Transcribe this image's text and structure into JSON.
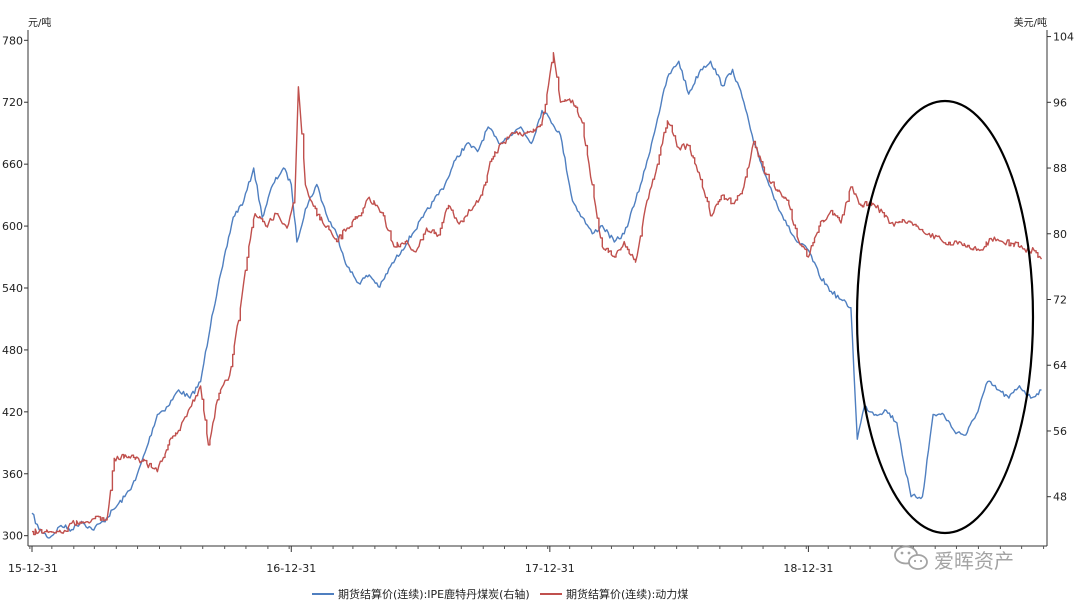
{
  "chart_data": {
    "type": "line",
    "left_axis": {
      "unit": "元/吨",
      "ticks": [
        "780",
        "720",
        "660",
        "600",
        "540",
        "480",
        "420",
        "360",
        "300"
      ],
      "range": [
        290,
        790
      ]
    },
    "right_axis": {
      "unit": "美元/吨",
      "ticks": [
        "104",
        "96",
        "88",
        "80",
        "72",
        "64",
        "56",
        "48"
      ],
      "range": [
        42,
        104.8
      ]
    },
    "x_ticks": [
      "15-12-31",
      "16-12-31",
      "17-12-31",
      "18-12-31"
    ],
    "x_range": [
      "2015-12-31",
      "2019-11-30"
    ],
    "series": [
      {
        "name": "期货结算价(连续):IPE鹿特丹煤炭(右轴)",
        "axis": "right",
        "color": "#4F7FC0",
        "points": [
          [
            "2015-12-31",
            46.0
          ],
          [
            "2016-01-10",
            44.0
          ],
          [
            "2016-01-25",
            43.0
          ],
          [
            "2016-02-10",
            44.5
          ],
          [
            "2016-02-25",
            44.0
          ],
          [
            "2016-03-10",
            45.0
          ],
          [
            "2016-03-25",
            44.0
          ],
          [
            "2016-04-10",
            45.0
          ],
          [
            "2016-04-25",
            46.5
          ],
          [
            "2016-05-10",
            48.0
          ],
          [
            "2016-05-25",
            50.0
          ],
          [
            "2016-06-10",
            54.0
          ],
          [
            "2016-06-25",
            58.0
          ],
          [
            "2016-07-10",
            59.0
          ],
          [
            "2016-07-25",
            61.0
          ],
          [
            "2016-08-10",
            60.0
          ],
          [
            "2016-08-25",
            62.0
          ],
          [
            "2016-09-10",
            70.0
          ],
          [
            "2016-09-25",
            76.0
          ],
          [
            "2016-10-10",
            82.0
          ],
          [
            "2016-10-25",
            84.0
          ],
          [
            "2016-11-08",
            88.0
          ],
          [
            "2016-11-20",
            82.0
          ],
          [
            "2016-12-05",
            86.0
          ],
          [
            "2016-12-20",
            88.0
          ],
          [
            "2016-12-31",
            86.0
          ],
          [
            "2017-01-08",
            79.0
          ],
          [
            "2017-01-20",
            83.0
          ],
          [
            "2017-02-05",
            86.0
          ],
          [
            "2017-02-20",
            82.0
          ],
          [
            "2017-03-05",
            80.0
          ],
          [
            "2017-03-20",
            76.0
          ],
          [
            "2017-04-05",
            74.0
          ],
          [
            "2017-04-20",
            75.0
          ],
          [
            "2017-05-05",
            73.5
          ],
          [
            "2017-05-20",
            76.0
          ],
          [
            "2017-06-05",
            78.0
          ],
          [
            "2017-06-20",
            80.0
          ],
          [
            "2017-07-05",
            82.0
          ],
          [
            "2017-07-20",
            84.0
          ],
          [
            "2017-08-05",
            86.0
          ],
          [
            "2017-08-20",
            89.0
          ],
          [
            "2017-09-05",
            91.0
          ],
          [
            "2017-09-20",
            90.0
          ],
          [
            "2017-10-05",
            93.0
          ],
          [
            "2017-10-20",
            91.0
          ],
          [
            "2017-11-05",
            92.0
          ],
          [
            "2017-11-20",
            93.0
          ],
          [
            "2017-12-05",
            91.0
          ],
          [
            "2017-12-20",
            95.0
          ],
          [
            "2017-12-31",
            94.0
          ],
          [
            "2018-01-15",
            92.0
          ],
          [
            "2018-02-01",
            84.0
          ],
          [
            "2018-02-15",
            82.0
          ],
          [
            "2018-03-01",
            80.0
          ],
          [
            "2018-03-15",
            81.0
          ],
          [
            "2018-04-01",
            79.0
          ],
          [
            "2018-04-15",
            80.0
          ],
          [
            "2018-05-01",
            84.0
          ],
          [
            "2018-05-15",
            88.0
          ],
          [
            "2018-06-01",
            94.0
          ],
          [
            "2018-06-15",
            99.0
          ],
          [
            "2018-07-01",
            101.0
          ],
          [
            "2018-07-15",
            97.0
          ],
          [
            "2018-08-01",
            100.0
          ],
          [
            "2018-08-15",
            101.0
          ],
          [
            "2018-09-01",
            98.0
          ],
          [
            "2018-09-15",
            100.0
          ],
          [
            "2018-10-01",
            96.0
          ],
          [
            "2018-10-15",
            91.0
          ],
          [
            "2018-11-01",
            87.0
          ],
          [
            "2018-11-15",
            84.0
          ],
          [
            "2018-12-01",
            81.0
          ],
          [
            "2018-12-15",
            79.0
          ],
          [
            "2018-12-31",
            78.0
          ],
          [
            "2019-01-15",
            75.0
          ],
          [
            "2019-02-01",
            73.0
          ],
          [
            "2019-02-15",
            72.0
          ],
          [
            "2019-03-01",
            71.0
          ],
          [
            "2019-03-10",
            55.0
          ],
          [
            "2019-03-20",
            59.0
          ],
          [
            "2019-04-05",
            58.0
          ],
          [
            "2019-04-20",
            58.5
          ],
          [
            "2019-05-05",
            57.0
          ],
          [
            "2019-05-15",
            52.0
          ],
          [
            "2019-05-25",
            48.0
          ],
          [
            "2019-06-10",
            48.0
          ],
          [
            "2019-06-25",
            58.0
          ],
          [
            "2019-07-10",
            58.0
          ],
          [
            "2019-07-25",
            56.0
          ],
          [
            "2019-08-10",
            55.5
          ],
          [
            "2019-08-25",
            58.0
          ],
          [
            "2019-09-10",
            62.0
          ],
          [
            "2019-09-25",
            61.0
          ],
          [
            "2019-10-10",
            60.0
          ],
          [
            "2019-10-25",
            61.5
          ],
          [
            "2019-11-10",
            60.0
          ],
          [
            "2019-11-25",
            61.0
          ]
        ]
      },
      {
        "name": "期货结算价(连续):动力煤",
        "axis": "left",
        "color": "#C0504D",
        "points": [
          [
            "2015-12-31",
            304
          ],
          [
            "2016-02-15",
            305
          ],
          [
            "2016-02-25",
            312
          ],
          [
            "2016-03-10",
            312
          ],
          [
            "2016-03-25",
            316
          ],
          [
            "2016-04-15",
            316
          ],
          [
            "2016-04-25",
            375
          ],
          [
            "2016-05-20",
            378
          ],
          [
            "2016-06-10",
            370
          ],
          [
            "2016-06-25",
            362
          ],
          [
            "2016-07-10",
            388
          ],
          [
            "2016-07-25",
            402
          ],
          [
            "2016-08-10",
            424
          ],
          [
            "2016-08-25",
            445
          ],
          [
            "2016-09-05",
            388
          ],
          [
            "2016-09-20",
            438
          ],
          [
            "2016-10-05",
            455
          ],
          [
            "2016-10-20",
            520
          ],
          [
            "2016-11-01",
            580
          ],
          [
            "2016-11-10",
            612
          ],
          [
            "2016-11-25",
            600
          ],
          [
            "2016-12-10",
            612
          ],
          [
            "2016-12-25",
            598
          ],
          [
            "2017-01-05",
            625
          ],
          [
            "2017-01-10",
            735
          ],
          [
            "2017-01-20",
            640
          ],
          [
            "2017-02-05",
            610
          ],
          [
            "2017-02-20",
            600
          ],
          [
            "2017-03-05",
            585
          ],
          [
            "2017-03-20",
            598
          ],
          [
            "2017-04-05",
            610
          ],
          [
            "2017-04-20",
            628
          ],
          [
            "2017-05-10",
            610
          ],
          [
            "2017-05-25",
            580
          ],
          [
            "2017-06-10",
            585
          ],
          [
            "2017-06-25",
            575
          ],
          [
            "2017-07-10",
            598
          ],
          [
            "2017-07-25",
            590
          ],
          [
            "2017-08-10",
            620
          ],
          [
            "2017-08-25",
            602
          ],
          [
            "2017-09-10",
            615
          ],
          [
            "2017-09-25",
            630
          ],
          [
            "2017-10-10",
            665
          ],
          [
            "2017-10-25",
            680
          ],
          [
            "2017-11-10",
            690
          ],
          [
            "2017-11-25",
            690
          ],
          [
            "2017-12-10",
            692
          ],
          [
            "2017-12-20",
            700
          ],
          [
            "2018-01-05",
            768
          ],
          [
            "2018-01-15",
            720
          ],
          [
            "2018-02-01",
            722
          ],
          [
            "2018-02-15",
            700
          ],
          [
            "2018-03-01",
            640
          ],
          [
            "2018-03-15",
            580
          ],
          [
            "2018-04-01",
            570
          ],
          [
            "2018-04-15",
            585
          ],
          [
            "2018-05-01",
            565
          ],
          [
            "2018-05-15",
            618
          ],
          [
            "2018-06-01",
            660
          ],
          [
            "2018-06-15",
            702
          ],
          [
            "2018-07-01",
            676
          ],
          [
            "2018-07-15",
            678
          ],
          [
            "2018-08-01",
            645
          ],
          [
            "2018-08-15",
            610
          ],
          [
            "2018-09-01",
            630
          ],
          [
            "2018-09-15",
            622
          ],
          [
            "2018-10-01",
            638
          ],
          [
            "2018-10-15",
            682
          ],
          [
            "2018-11-01",
            650
          ],
          [
            "2018-11-15",
            635
          ],
          [
            "2018-12-01",
            625
          ],
          [
            "2018-12-15",
            590
          ],
          [
            "2018-12-31",
            570
          ],
          [
            "2019-01-15",
            600
          ],
          [
            "2019-02-01",
            615
          ],
          [
            "2019-02-15",
            603
          ],
          [
            "2019-03-01",
            638
          ],
          [
            "2019-03-15",
            620
          ],
          [
            "2019-04-01",
            622
          ],
          [
            "2019-04-15",
            613
          ],
          [
            "2019-05-01",
            600
          ],
          [
            "2019-05-15",
            606
          ],
          [
            "2019-06-01",
            600
          ],
          [
            "2019-06-15",
            592
          ],
          [
            "2019-07-01",
            590
          ],
          [
            "2019-07-15",
            582
          ],
          [
            "2019-08-01",
            585
          ],
          [
            "2019-08-15",
            580
          ],
          [
            "2019-09-01",
            577
          ],
          [
            "2019-09-15",
            588
          ],
          [
            "2019-10-01",
            585
          ],
          [
            "2019-10-15",
            583
          ],
          [
            "2019-11-01",
            578
          ],
          [
            "2019-11-15",
            576
          ],
          [
            "2019-11-25",
            568
          ]
        ]
      }
    ],
    "annotation": "ellipse-around-2019-divergence"
  },
  "watermark": {
    "text": "爱晖资产",
    "icon": "wechat-icon"
  }
}
